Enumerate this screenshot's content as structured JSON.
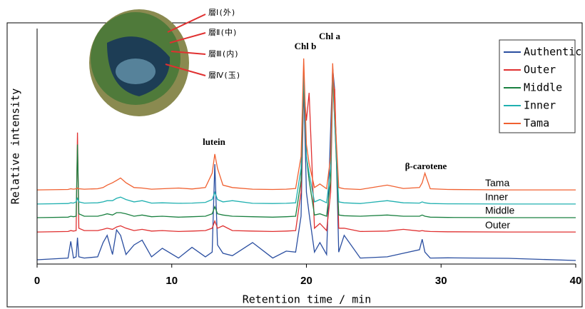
{
  "chart_data": {
    "type": "line",
    "xlabel": "Retention time / min",
    "ylabel": "Relative intensity",
    "xlim": [
      0,
      40
    ],
    "xticks": [
      0,
      10,
      20,
      30,
      40
    ],
    "ylim": [
      0,
      100
    ],
    "x": [
      0,
      2.3,
      2.5,
      2.7,
      2.9,
      3.0,
      3.1,
      3.5,
      4.5,
      4.9,
      5.2,
      5.6,
      5.9,
      6.2,
      6.6,
      7.2,
      7.8,
      8.5,
      9.3,
      10.5,
      11.5,
      12.5,
      13.0,
      13.2,
      13.4,
      13.8,
      14.5,
      16.0,
      17.5,
      18.5,
      19.2,
      19.6,
      19.8,
      20.0,
      20.2,
      20.6,
      21.0,
      21.5,
      21.8,
      21.95,
      22.1,
      22.4,
      22.8,
      24.0,
      26.0,
      27.2,
      28.4,
      28.6,
      28.8,
      29.2,
      30.5,
      35.0,
      40.0
    ],
    "series": [
      {
        "name": "Authentic",
        "color": "#2a4ea0",
        "values": [
          1.8,
          2.5,
          9.5,
          2.5,
          3,
          11,
          3,
          2.5,
          3,
          9,
          12,
          4,
          14.3,
          12,
          4,
          8,
          10,
          3,
          6.6,
          2.5,
          7,
          3,
          5,
          41.8,
          8,
          4.5,
          3.5,
          9,
          2.5,
          5.4,
          5,
          20,
          75,
          30,
          21,
          5,
          9,
          4,
          57,
          82,
          73,
          5,
          12,
          2.5,
          3,
          4.5,
          6,
          10.4,
          5,
          2.5,
          2.6,
          2.4,
          1.5
        ]
      },
      {
        "name": "Outer",
        "color": "#e03030",
        "values": [
          13.4,
          13.6,
          14,
          13.8,
          14,
          55,
          15,
          14,
          14,
          14.5,
          15,
          14.5,
          15.5,
          16,
          15,
          14,
          14.5,
          13.8,
          14,
          13.6,
          13.8,
          14,
          15,
          18,
          15,
          16,
          14,
          13.8,
          13.6,
          13.8,
          14,
          30,
          74.6,
          60,
          71.6,
          15,
          17,
          14,
          30,
          76,
          73,
          15,
          15,
          13.6,
          13.8,
          14.5,
          13.8,
          14,
          13.8,
          13.6,
          13.5,
          13.4,
          13.4
        ]
      },
      {
        "name": "Middle",
        "color": "#1a8040",
        "values": [
          19.4,
          19.6,
          20,
          19.8,
          20,
          50,
          21,
          20,
          20,
          20.5,
          21,
          20.5,
          21.5,
          21.5,
          21,
          20,
          20.5,
          19.8,
          20,
          19.6,
          19.8,
          20,
          21,
          24,
          21,
          20.5,
          20,
          19.8,
          19.6,
          19.8,
          20,
          35,
          77.6,
          45,
          35,
          20.5,
          21,
          20,
          35,
          79,
          60,
          20.5,
          20.2,
          20,
          20.5,
          20,
          20,
          20.5,
          20,
          19.6,
          19.5,
          19.4,
          19.4
        ]
      },
      {
        "name": "Inner",
        "color": "#20b0b0",
        "values": [
          25.1,
          25.3,
          25.6,
          25.5,
          26,
          27.5,
          26,
          25.5,
          25.6,
          26,
          26.5,
          26.5,
          27.5,
          28,
          27,
          26,
          26.5,
          25.5,
          25.6,
          25.4,
          25.5,
          25.8,
          27,
          30,
          27,
          26,
          26.5,
          25.4,
          25.3,
          25.4,
          25.6,
          40,
          80,
          45,
          38,
          26,
          27,
          25.6,
          40,
          82,
          60,
          26,
          25.6,
          25.3,
          26.5,
          25.6,
          25.5,
          26,
          25.6,
          25.3,
          25.2,
          25.1,
          25.1
        ]
      },
      {
        "name": "Tama",
        "color": "#f06030",
        "values": [
          31,
          31.2,
          31.5,
          31.3,
          31.5,
          31.8,
          31.5,
          31.3,
          31.5,
          32,
          33,
          34,
          35,
          36,
          34,
          32,
          31.8,
          31.3,
          31.5,
          31.8,
          31.4,
          32,
          38,
          46,
          40,
          33,
          32,
          31.3,
          31.2,
          31.3,
          31.6,
          45,
          86,
          50,
          42,
          32,
          33.5,
          31.5,
          45,
          84,
          65,
          32,
          31.5,
          31.2,
          33,
          31.6,
          32,
          34,
          38,
          31.5,
          31.2,
          31,
          31
        ]
      }
    ],
    "peak_labels": [
      "lutein",
      "Chl b",
      "Chl a",
      "β-carotene"
    ],
    "inset_labels": [
      "層Ⅰ(外)",
      "層Ⅱ(中)",
      "層Ⅲ(内)",
      "層Ⅳ(玉)"
    ]
  }
}
